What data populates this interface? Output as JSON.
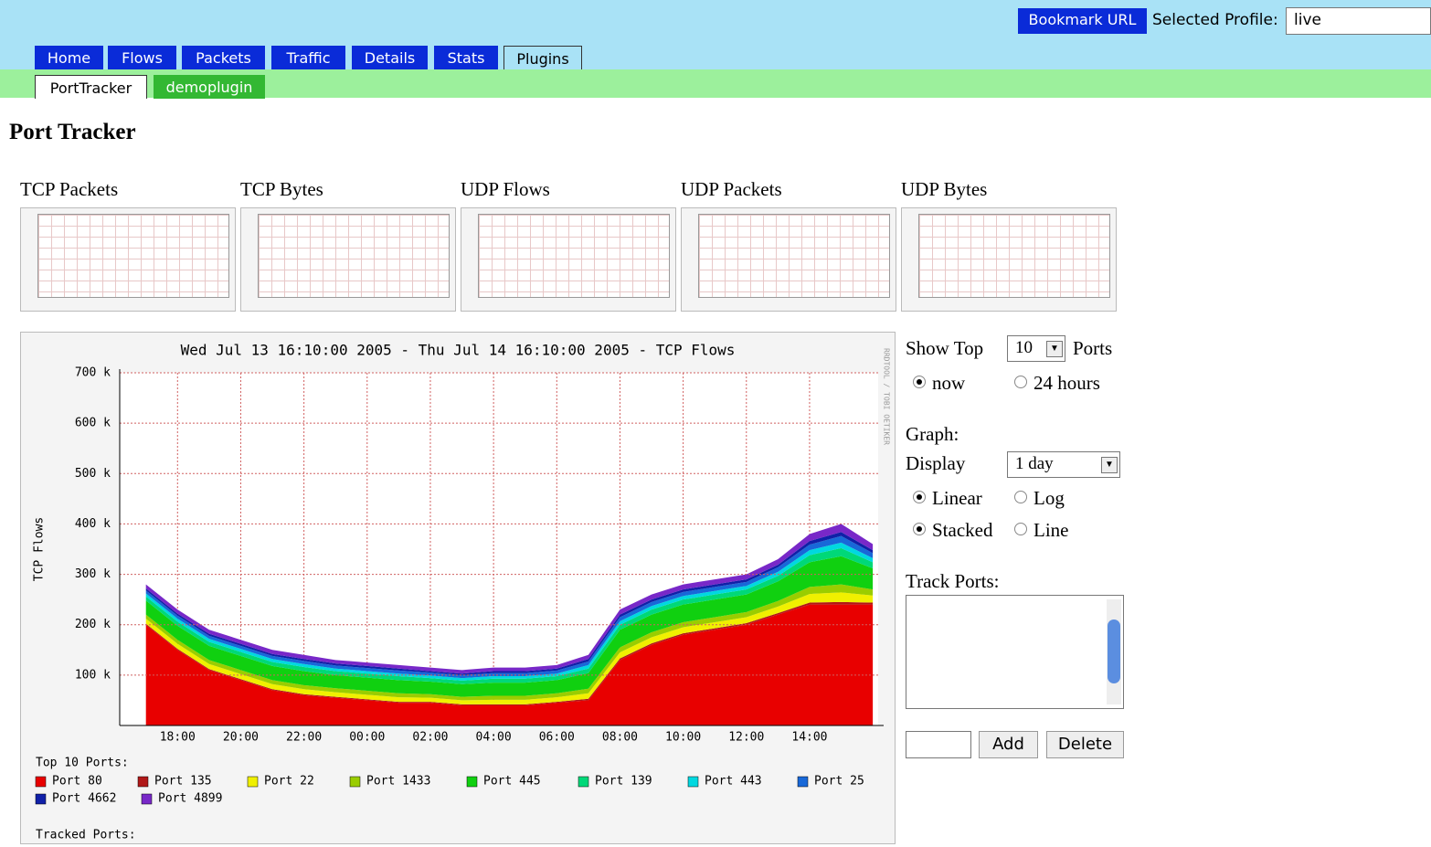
{
  "header": {
    "bookmark": "Bookmark URL",
    "profile_label": "Selected Profile:",
    "profile": "live"
  },
  "tabs": [
    {
      "label": "Home",
      "active": false
    },
    {
      "label": "Flows",
      "active": false
    },
    {
      "label": "Packets",
      "active": false
    },
    {
      "label": "Traffic",
      "active": false
    },
    {
      "label": "Details",
      "active": false
    },
    {
      "label": "Stats",
      "active": false
    },
    {
      "label": "Plugins",
      "active": true
    }
  ],
  "subtabs": [
    {
      "label": "PortTracker",
      "active": true
    },
    {
      "label": "demoplugin",
      "active": false
    }
  ],
  "heading": "Port Tracker",
  "thumbnails": [
    "TCP Packets",
    "TCP Bytes",
    "UDP Flows",
    "UDP Packets",
    "UDP Bytes"
  ],
  "chart_data": {
    "type": "area",
    "stacked": true,
    "title": "Wed Jul 13 16:10:00 2005 - Thu Jul 14 16:10:00 2005 - TCP Flows",
    "y_label": "TCP Flows",
    "watermark": "RRDTOOL / TOBI OETIKER",
    "legend_title": "Top 10 Ports:",
    "tracked_title": "Tracked Ports:",
    "categories": [
      null,
      "18:00",
      null,
      "20:00",
      null,
      "22:00",
      null,
      "00:00",
      null,
      "02:00",
      null,
      "04:00",
      null,
      "06:00",
      null,
      "08:00",
      null,
      "10:00",
      null,
      "12:00",
      null,
      "14:00",
      null,
      null
    ],
    "ylim": [
      0,
      700000
    ],
    "yticks": [
      {
        "value": 100000,
        "label": "100 k"
      },
      {
        "value": 200000,
        "label": "200 k"
      },
      {
        "value": 300000,
        "label": "300 k"
      },
      {
        "value": 400000,
        "label": "400 k"
      },
      {
        "value": 500000,
        "label": "500 k"
      },
      {
        "value": 600000,
        "label": "600 k"
      },
      {
        "value": 700000,
        "label": "700 k"
      }
    ],
    "grid": true,
    "series": [
      {
        "name": "Port 80",
        "color": "#e80000",
        "values": [
          200000,
          150000,
          110000,
          90000,
          70000,
          60000,
          55000,
          50000,
          45000,
          45000,
          40000,
          40000,
          40000,
          45000,
          50000,
          130000,
          160000,
          180000,
          190000,
          200000,
          220000,
          240000,
          240000,
          240000
        ]
      },
      {
        "name": "Port 135",
        "color": "#b01818",
        "values": [
          2000,
          2000,
          2000,
          2000,
          2000,
          2000,
          2000,
          2000,
          2000,
          2000,
          2000,
          2000,
          2000,
          2000,
          3000,
          3000,
          3000,
          3000,
          3000,
          3000,
          3000,
          4000,
          5000,
          4000
        ]
      },
      {
        "name": "Port 22",
        "color": "#f0f000",
        "values": [
          10000,
          10000,
          10000,
          10000,
          10000,
          10000,
          9000,
          9000,
          9000,
          8000,
          8000,
          9000,
          9000,
          9000,
          11000,
          12000,
          12000,
          12000,
          12000,
          12000,
          13000,
          17000,
          19000,
          14000
        ]
      },
      {
        "name": "Port 1433",
        "color": "#9acd00",
        "values": [
          8000,
          8000,
          8000,
          8000,
          8000,
          8000,
          8000,
          8000,
          8000,
          7000,
          7000,
          8000,
          8000,
          8000,
          9000,
          10000,
          10000,
          10000,
          10000,
          10000,
          11000,
          14000,
          16000,
          12000
        ]
      },
      {
        "name": "Port 445",
        "color": "#10d010",
        "values": [
          28000,
          28000,
          28000,
          28000,
          28000,
          28000,
          26000,
          26000,
          26000,
          25000,
          25000,
          26000,
          26000,
          26000,
          31000,
          35000,
          35000,
          35000,
          35000,
          35000,
          39000,
          49000,
          56000,
          42000
        ]
      },
      {
        "name": "Port 139",
        "color": "#00d878",
        "values": [
          8000,
          8000,
          8000,
          8000,
          8000,
          8000,
          8000,
          8000,
          8000,
          7000,
          7000,
          8000,
          8000,
          8000,
          9000,
          10000,
          10000,
          10000,
          10000,
          10000,
          11000,
          14000,
          16000,
          12000
        ]
      },
      {
        "name": "Port 443",
        "color": "#00d8e0",
        "values": [
          6000,
          6000,
          6000,
          6000,
          6000,
          6000,
          5000,
          5000,
          5000,
          5000,
          5000,
          5000,
          5000,
          5000,
          7000,
          7000,
          7000,
          7000,
          7000,
          7000,
          8000,
          10000,
          11000,
          8000
        ]
      },
      {
        "name": "Port 25",
        "color": "#1868d8",
        "values": [
          6000,
          6000,
          6000,
          6000,
          6000,
          6000,
          6000,
          6000,
          6000,
          6000,
          6000,
          6000,
          6000,
          6000,
          7000,
          8000,
          8000,
          8000,
          8000,
          8000,
          9000,
          11000,
          13000,
          10000
        ]
      },
      {
        "name": "Port 4662",
        "color": "#1020a8",
        "values": [
          4000,
          4000,
          4000,
          4000,
          4000,
          4000,
          4000,
          4000,
          4000,
          3000,
          3000,
          4000,
          4000,
          4000,
          5000,
          5000,
          5000,
          5000,
          5000,
          5000,
          5000,
          7000,
          8000,
          6000
        ]
      },
      {
        "name": "Port 4899",
        "color": "#7828c8",
        "values": [
          8000,
          8000,
          8000,
          8000,
          8000,
          8000,
          7000,
          7000,
          7000,
          7000,
          7000,
          7000,
          7000,
          7000,
          8000,
          10000,
          10000,
          10000,
          10000,
          10000,
          11000,
          14000,
          16000,
          12000
        ]
      }
    ]
  },
  "form": {
    "show_top": "Show Top",
    "top_count": "10",
    "ports": "Ports",
    "range": [
      {
        "label": "now",
        "selected": true
      },
      {
        "label": "24 hours",
        "selected": false
      }
    ],
    "graph": "Graph:",
    "display": "Display",
    "display_value": "1 day",
    "scale": [
      {
        "label": "Linear",
        "selected": true
      },
      {
        "label": "Log",
        "selected": false
      }
    ],
    "mode": [
      {
        "label": "Stacked",
        "selected": true
      },
      {
        "label": "Line",
        "selected": false
      }
    ],
    "track_ports": "Track Ports:",
    "add": "Add",
    "delete": "Delete"
  }
}
